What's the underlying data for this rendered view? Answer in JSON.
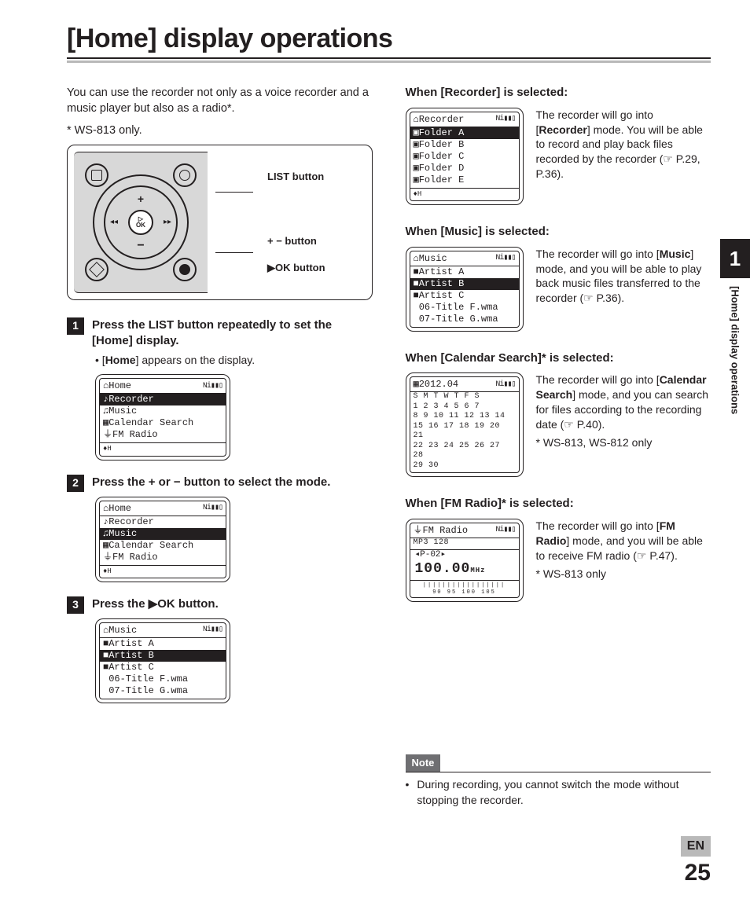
{
  "title": "[Home] display operations",
  "intro": "You can use the recorder not only as a voice recorder and a music player but also as a radio*.",
  "intro_footnote": "* WS-813 only.",
  "device_labels": {
    "list": "LIST button",
    "plusminus": "+ − button",
    "ok": "▶OK button"
  },
  "steps": [
    {
      "num": "1",
      "text_pre": "Press the ",
      "text_bold1": "LIST",
      "text_mid": " button repeatedly to set the [",
      "text_bold2": "Home",
      "text_post": "] display.",
      "sub": "[Home] appears on the display.",
      "lcd": {
        "title": "⌂Home",
        "batt": "Ni▮▮▯",
        "rows": [
          {
            "t": "♪Recorder",
            "sel": true
          },
          {
            "t": "♫Music",
            "sel": false
          },
          {
            "t": "▦Calendar Search",
            "sel": false
          },
          {
            "t": "⏚FM Radio",
            "sel": false
          }
        ],
        "foot": "♦H"
      }
    },
    {
      "num": "2",
      "text_pre": "Press the ",
      "text_bold1": "+",
      "text_mid": " or ",
      "text_bold2": "−",
      "text_post": " button to select the mode.",
      "lcd": {
        "title": "⌂Home",
        "batt": "Ni▮▮▯",
        "rows": [
          {
            "t": "♪Recorder",
            "sel": false
          },
          {
            "t": "♫Music",
            "sel": true
          },
          {
            "t": "▦Calendar Search",
            "sel": false
          },
          {
            "t": "⏚FM Radio",
            "sel": false
          }
        ],
        "foot": "♦H"
      }
    },
    {
      "num": "3",
      "text_pre": "Press the ",
      "text_bold1": "▶OK",
      "text_mid": "",
      "text_bold2": "",
      "text_post": " button.",
      "lcd": {
        "title": "⌂Music",
        "batt": "Ni▮▮▯",
        "rows": [
          {
            "t": "■Artist A",
            "sel": false
          },
          {
            "t": "■Artist B",
            "sel": true
          },
          {
            "t": "■Artist C",
            "sel": false
          },
          {
            "t": " 06-Title F.wma",
            "sel": false
          },
          {
            "t": " 07-Title G.wma",
            "sel": false
          }
        ]
      }
    }
  ],
  "modes": [
    {
      "head_pre": "When [",
      "head_bold": "Recorder",
      "head_post": "] is selected:",
      "desc": "The recorder will go into [<b>Recorder</b>] mode. You will be able to record and play back files recorded by the recorder (☞ P.29, P.36).",
      "lcd": {
        "title": "⌂Recorder",
        "batt": "Ni▮▮▯",
        "rows": [
          {
            "t": "▣Folder A",
            "sel": true
          },
          {
            "t": "▣Folder B",
            "sel": false
          },
          {
            "t": "▣Folder C",
            "sel": false
          },
          {
            "t": "▣Folder D",
            "sel": false
          },
          {
            "t": "▣Folder E",
            "sel": false
          }
        ],
        "foot": "♦H"
      }
    },
    {
      "head_pre": "When [",
      "head_bold": "Music",
      "head_post": "] is selected:",
      "desc": "The recorder will go into [<b>Music</b>] mode, and you will be able to play back music files transferred to the recorder (☞ P.36).",
      "lcd": {
        "title": "⌂Music",
        "batt": "Ni▮▮▯",
        "rows": [
          {
            "t": "■Artist A",
            "sel": false
          },
          {
            "t": "■Artist B",
            "sel": true
          },
          {
            "t": "■Artist C",
            "sel": false
          },
          {
            "t": " 06-Title F.wma",
            "sel": false
          },
          {
            "t": " 07-Title G.wma",
            "sel": false
          }
        ]
      }
    },
    {
      "head_pre": "When [",
      "head_bold": "Calendar Search",
      "head_post": "]* is selected:",
      "desc": "The recorder will go into [<b>Calendar Search</b>] mode, and you can search for files according to the recording date (☞ P.40).",
      "foot": "* WS-813, WS-812 only",
      "lcd": {
        "title": "▦2012.04",
        "batt": "Ni▮▮▯",
        "type": "cal",
        "cal": [
          "S  M  T  W  T  F  S",
          " 1  2  3  4  5  6  7",
          " 8  9 10 11 12 13 14",
          "15 16 17 18 19 20 21",
          "22 23 24 25 26 27 28",
          "29 30"
        ]
      }
    },
    {
      "head_pre": "When [",
      "head_bold": "FM Radio",
      "head_post": "]* is selected:",
      "desc": "The recorder will go into [<b>FM Radio</b>] mode, and you will be able to receive FM radio (☞ P.47).",
      "foot": "* WS-813 only",
      "lcd": {
        "title": "⏚FM Radio",
        "batt": "Ni▮▮▯",
        "type": "fm",
        "fm": {
          "sub": "MP3 128",
          "preset": "◂P-02▸",
          "freq": "100.00",
          "unit": "MHz",
          "scale": "90  95  100  105"
        }
      }
    }
  ],
  "note": {
    "label": "Note",
    "text": "During recording, you cannot switch the mode without stopping the recorder."
  },
  "side": {
    "chapter": "1",
    "label": "[Home] display operations"
  },
  "footer": {
    "lang": "EN",
    "page": "25"
  }
}
